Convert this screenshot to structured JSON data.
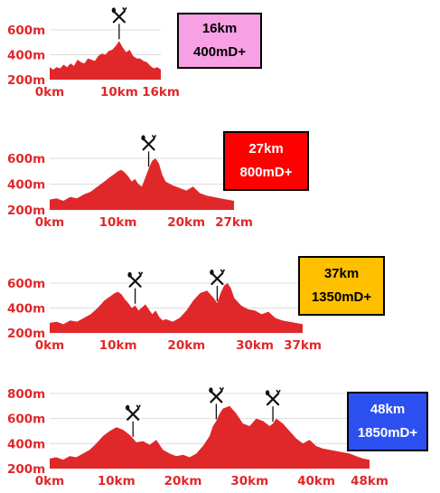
{
  "colors": {
    "profile_fill": "#e0282a",
    "axis_text": "#e0282a",
    "gridline": "#dcdcdc",
    "marker": "#111111"
  },
  "chart_data": [
    {
      "type": "area",
      "badge": {
        "distance": "16km",
        "elevation_gain": "400mD+",
        "color": "#f7a0e4"
      },
      "xlim": [
        0,
        16
      ],
      "ylim": [
        200,
        600
      ],
      "x_ticks": [
        0,
        10,
        16
      ],
      "x_tick_labels": [
        "0km",
        "10km",
        "16km"
      ],
      "y_ticks": [
        200,
        400,
        600
      ],
      "y_tick_labels": [
        "200m",
        "400m",
        "600m"
      ],
      "rest_stops_km": [
        10
      ],
      "elevation_profile": {
        "x": [
          0,
          0.5,
          1,
          1.5,
          2,
          2.5,
          3,
          3.5,
          4,
          4.5,
          5,
          5.5,
          6,
          6.5,
          7,
          7.5,
          8,
          8.5,
          9,
          9.5,
          10,
          10.5,
          11,
          11.5,
          12,
          12.5,
          13,
          13.5,
          14,
          14.5,
          15,
          15.5,
          16
        ],
        "y": [
          300,
          280,
          300,
          290,
          320,
          300,
          330,
          310,
          360,
          340,
          330,
          370,
          360,
          350,
          390,
          410,
          400,
          430,
          440,
          470,
          510,
          460,
          420,
          440,
          390,
          370,
          370,
          350,
          340,
          310,
          290,
          300,
          280
        ]
      }
    },
    {
      "type": "area",
      "badge": {
        "distance": "27km",
        "elevation_gain": "800mD+",
        "color": "#ff0000"
      },
      "xlim": [
        0,
        27
      ],
      "ylim": [
        200,
        600
      ],
      "x_ticks": [
        0,
        10,
        20,
        27
      ],
      "x_tick_labels": [
        "0km",
        "10km",
        "20km",
        "27km"
      ],
      "y_ticks": [
        200,
        400,
        600
      ],
      "y_tick_labels": [
        "200m",
        "400m",
        "600m"
      ],
      "rest_stops_km": [
        14.5
      ],
      "elevation_profile": {
        "x": [
          0,
          1,
          2,
          3,
          4,
          5,
          6,
          7,
          8,
          8.5,
          9,
          9.5,
          10,
          10.5,
          11,
          11.5,
          12,
          12.5,
          13,
          13.5,
          14,
          14.5,
          15,
          15.5,
          16,
          16.5,
          17,
          18,
          19,
          20,
          21,
          22,
          23,
          24,
          25,
          26,
          27
        ],
        "y": [
          280,
          290,
          270,
          300,
          290,
          320,
          340,
          380,
          420,
          440,
          460,
          480,
          500,
          510,
          490,
          460,
          420,
          440,
          400,
          380,
          450,
          520,
          580,
          600,
          560,
          470,
          420,
          390,
          370,
          350,
          380,
          330,
          310,
          300,
          290,
          280,
          270
        ]
      }
    },
    {
      "type": "area",
      "badge": {
        "distance": "37km",
        "elevation_gain": "1350mD+",
        "color": "#ffc000"
      },
      "xlim": [
        0,
        37
      ],
      "ylim": [
        200,
        600
      ],
      "x_ticks": [
        0,
        10,
        20,
        30,
        37
      ],
      "x_tick_labels": [
        "0km",
        "10km",
        "20km",
        "30km",
        "37km"
      ],
      "y_ticks": [
        200,
        400,
        600
      ],
      "y_tick_labels": [
        "200m",
        "400m",
        "600m"
      ],
      "rest_stops_km": [
        12.5,
        24.5
      ],
      "elevation_profile": {
        "x": [
          0,
          1,
          2,
          3,
          4,
          5,
          6,
          7,
          8,
          8.5,
          9,
          9.5,
          10,
          10.5,
          11,
          11.5,
          12,
          12.5,
          13,
          14,
          15,
          15.5,
          16,
          16.5,
          17,
          18,
          19,
          20,
          21,
          22,
          23,
          24,
          24.5,
          25,
          25.5,
          26,
          26.5,
          27,
          28,
          29,
          30,
          31,
          32,
          33,
          34,
          35,
          36,
          37
        ],
        "y": [
          280,
          290,
          270,
          300,
          290,
          320,
          350,
          400,
          460,
          480,
          500,
          520,
          530,
          510,
          470,
          440,
          400,
          420,
          380,
          430,
          350,
          380,
          330,
          300,
          310,
          290,
          320,
          380,
          460,
          520,
          540,
          480,
          440,
          520,
          580,
          600,
          560,
          480,
          420,
          390,
          380,
          350,
          370,
          320,
          300,
          290,
          280,
          270
        ]
      }
    },
    {
      "type": "area",
      "badge": {
        "distance": "48km",
        "elevation_gain": "1850mD+",
        "color": "#2c50f0"
      },
      "xlim": [
        0,
        48
      ],
      "ylim": [
        200,
        800
      ],
      "x_ticks": [
        0,
        10,
        20,
        30,
        40,
        48
      ],
      "x_tick_labels": [
        "0km",
        "10km",
        "20km",
        "30km",
        "40km",
        "48km"
      ],
      "y_ticks": [
        200,
        400,
        600,
        800
      ],
      "y_tick_labels": [
        "200m",
        "400m",
        "600m",
        "800m"
      ],
      "rest_stops_km": [
        12.5,
        25,
        33.5
      ],
      "elevation_profile": {
        "x": [
          0,
          1,
          2,
          3,
          4,
          5,
          6,
          7,
          8,
          9,
          10,
          11,
          12,
          12.5,
          13,
          14,
          15,
          16,
          17,
          18,
          19,
          20,
          21,
          22,
          23,
          24,
          24.5,
          25,
          25.5,
          26,
          27,
          28,
          29,
          30,
          31,
          32,
          33,
          33.5,
          34,
          35,
          36,
          37,
          38,
          39,
          40,
          41,
          42,
          43,
          44,
          45,
          46,
          47,
          48
        ],
        "y": [
          280,
          290,
          270,
          300,
          290,
          320,
          350,
          400,
          460,
          500,
          530,
          510,
          470,
          440,
          410,
          420,
          390,
          430,
          350,
          320,
          300,
          310,
          290,
          320,
          380,
          460,
          540,
          580,
          640,
          680,
          700,
          640,
          560,
          540,
          600,
          580,
          540,
          560,
          600,
          560,
          500,
          440,
          400,
          430,
          380,
          360,
          350,
          340,
          330,
          320,
          300,
          280,
          270
        ]
      }
    }
  ]
}
